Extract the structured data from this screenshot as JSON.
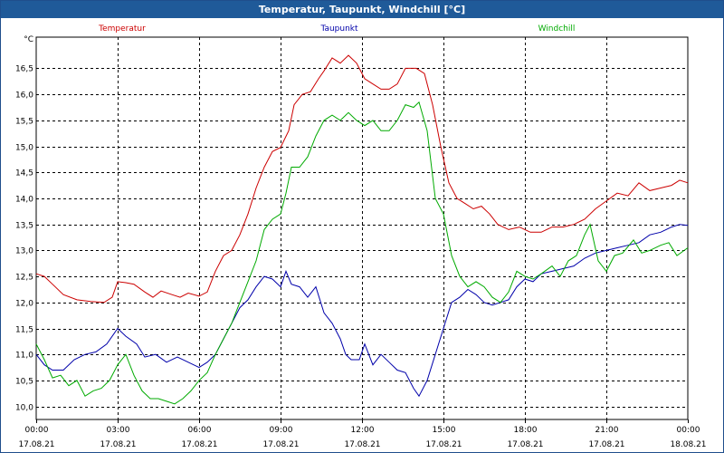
{
  "window": {
    "title": "Temperatur, Taupunkt, Windchill [°C]"
  },
  "chart_data": {
    "type": "line",
    "title": "Temperatur, Taupunkt, Windchill [°C]",
    "ylabel": "°C",
    "ylim": [
      9.75,
      17.1
    ],
    "xlim": [
      0,
      24
    ],
    "grid": true,
    "legend": "top",
    "yticks": [
      "10,0",
      "10,5",
      "11,0",
      "11,5",
      "12,0",
      "12,5",
      "13,0",
      "13,5",
      "14,0",
      "14,5",
      "15,0",
      "15,5",
      "16,0",
      "16,5"
    ],
    "ytick_values": [
      10.0,
      10.5,
      11.0,
      11.5,
      12.0,
      12.5,
      13.0,
      13.5,
      14.0,
      14.5,
      15.0,
      15.5,
      16.0,
      16.5
    ],
    "xticks": [
      {
        "time": "00:00",
        "date": "17.08.21",
        "h": 0
      },
      {
        "time": "03:00",
        "date": "17.08.21",
        "h": 3
      },
      {
        "time": "06:00",
        "date": "17.08.21",
        "h": 6
      },
      {
        "time": "09:00",
        "date": "17.08.21",
        "h": 9
      },
      {
        "time": "12:00",
        "date": "17.08.21",
        "h": 12
      },
      {
        "time": "15:00",
        "date": "17.08.21",
        "h": 15
      },
      {
        "time": "18:00",
        "date": "17.08.21",
        "h": 18
      },
      {
        "time": "21:00",
        "date": "17.08.21",
        "h": 21
      },
      {
        "time": "00:00",
        "date": "18.08.21",
        "h": 24
      }
    ],
    "series": [
      {
        "name": "Temperatur",
        "color": "#cc0000",
        "points": [
          [
            0,
            12.55
          ],
          [
            0.3,
            12.5
          ],
          [
            0.6,
            12.35
          ],
          [
            1.0,
            12.15
          ],
          [
            1.5,
            12.05
          ],
          [
            2.0,
            12.02
          ],
          [
            2.5,
            12.0
          ],
          [
            2.8,
            12.1
          ],
          [
            3.0,
            12.4
          ],
          [
            3.3,
            12.38
          ],
          [
            3.6,
            12.35
          ],
          [
            4.0,
            12.2
          ],
          [
            4.3,
            12.1
          ],
          [
            4.6,
            12.22
          ],
          [
            5.0,
            12.15
          ],
          [
            5.3,
            12.1
          ],
          [
            5.6,
            12.18
          ],
          [
            6.0,
            12.12
          ],
          [
            6.3,
            12.2
          ],
          [
            6.6,
            12.6
          ],
          [
            6.9,
            12.9
          ],
          [
            7.2,
            13.0
          ],
          [
            7.5,
            13.3
          ],
          [
            7.8,
            13.7
          ],
          [
            8.1,
            14.2
          ],
          [
            8.4,
            14.6
          ],
          [
            8.7,
            14.9
          ],
          [
            9.0,
            14.98
          ],
          [
            9.3,
            15.3
          ],
          [
            9.5,
            15.8
          ],
          [
            9.8,
            16.0
          ],
          [
            10.1,
            16.05
          ],
          [
            10.4,
            16.3
          ],
          [
            10.6,
            16.45
          ],
          [
            10.9,
            16.7
          ],
          [
            11.2,
            16.6
          ],
          [
            11.5,
            16.75
          ],
          [
            11.8,
            16.6
          ],
          [
            12.1,
            16.3
          ],
          [
            12.4,
            16.2
          ],
          [
            12.7,
            16.1
          ],
          [
            13.0,
            16.1
          ],
          [
            13.3,
            16.2
          ],
          [
            13.6,
            16.5
          ],
          [
            14.0,
            16.5
          ],
          [
            14.3,
            16.4
          ],
          [
            14.6,
            15.8
          ],
          [
            14.9,
            15.0
          ],
          [
            15.2,
            14.3
          ],
          [
            15.5,
            14.0
          ],
          [
            15.8,
            13.9
          ],
          [
            16.1,
            13.8
          ],
          [
            16.4,
            13.85
          ],
          [
            16.7,
            13.7
          ],
          [
            17.0,
            13.5
          ],
          [
            17.4,
            13.4
          ],
          [
            17.8,
            13.45
          ],
          [
            18.2,
            13.35
          ],
          [
            18.6,
            13.35
          ],
          [
            19.0,
            13.45
          ],
          [
            19.4,
            13.45
          ],
          [
            19.8,
            13.5
          ],
          [
            20.2,
            13.6
          ],
          [
            20.6,
            13.8
          ],
          [
            21.0,
            13.95
          ],
          [
            21.4,
            14.1
          ],
          [
            21.8,
            14.05
          ],
          [
            22.2,
            14.3
          ],
          [
            22.6,
            14.15
          ],
          [
            23.0,
            14.2
          ],
          [
            23.4,
            14.25
          ],
          [
            23.7,
            14.35
          ],
          [
            24.0,
            14.3
          ]
        ]
      },
      {
        "name": "Taupunkt",
        "color": "#0000aa",
        "points": [
          [
            0,
            11.0
          ],
          [
            0.3,
            10.8
          ],
          [
            0.6,
            10.7
          ],
          [
            1.0,
            10.7
          ],
          [
            1.4,
            10.9
          ],
          [
            1.8,
            11.0
          ],
          [
            2.2,
            11.05
          ],
          [
            2.6,
            11.2
          ],
          [
            3.0,
            11.5
          ],
          [
            3.3,
            11.35
          ],
          [
            3.7,
            11.2
          ],
          [
            4.0,
            10.95
          ],
          [
            4.4,
            11.0
          ],
          [
            4.8,
            10.85
          ],
          [
            5.2,
            10.95
          ],
          [
            5.6,
            10.85
          ],
          [
            6.0,
            10.75
          ],
          [
            6.3,
            10.85
          ],
          [
            6.6,
            11.0
          ],
          [
            6.9,
            11.3
          ],
          [
            7.2,
            11.6
          ],
          [
            7.5,
            11.9
          ],
          [
            7.8,
            12.05
          ],
          [
            8.1,
            12.3
          ],
          [
            8.4,
            12.5
          ],
          [
            8.7,
            12.45
          ],
          [
            9.0,
            12.3
          ],
          [
            9.2,
            12.6
          ],
          [
            9.4,
            12.35
          ],
          [
            9.7,
            12.3
          ],
          [
            10.0,
            12.1
          ],
          [
            10.3,
            12.3
          ],
          [
            10.6,
            11.8
          ],
          [
            10.9,
            11.6
          ],
          [
            11.2,
            11.3
          ],
          [
            11.4,
            11.0
          ],
          [
            11.6,
            10.9
          ],
          [
            11.9,
            10.9
          ],
          [
            12.1,
            11.2
          ],
          [
            12.4,
            10.8
          ],
          [
            12.7,
            11.0
          ],
          [
            13.0,
            10.85
          ],
          [
            13.3,
            10.7
          ],
          [
            13.6,
            10.65
          ],
          [
            13.9,
            10.35
          ],
          [
            14.1,
            10.2
          ],
          [
            14.4,
            10.5
          ],
          [
            14.7,
            11.0
          ],
          [
            15.0,
            11.5
          ],
          [
            15.3,
            12.0
          ],
          [
            15.6,
            12.1
          ],
          [
            15.9,
            12.25
          ],
          [
            16.2,
            12.15
          ],
          [
            16.5,
            12.0
          ],
          [
            16.8,
            11.95
          ],
          [
            17.1,
            12.0
          ],
          [
            17.4,
            12.05
          ],
          [
            17.7,
            12.3
          ],
          [
            18.0,
            12.45
          ],
          [
            18.3,
            12.4
          ],
          [
            18.6,
            12.55
          ],
          [
            19.0,
            12.6
          ],
          [
            19.4,
            12.65
          ],
          [
            19.8,
            12.7
          ],
          [
            20.2,
            12.85
          ],
          [
            20.6,
            12.95
          ],
          [
            21.0,
            13.0
          ],
          [
            21.4,
            13.05
          ],
          [
            21.8,
            13.1
          ],
          [
            22.2,
            13.15
          ],
          [
            22.6,
            13.3
          ],
          [
            23.0,
            13.35
          ],
          [
            23.4,
            13.45
          ],
          [
            23.7,
            13.5
          ],
          [
            24.0,
            13.48
          ]
        ]
      },
      {
        "name": "Windchill",
        "color": "#00aa00",
        "points": [
          [
            0,
            11.2
          ],
          [
            0.3,
            10.9
          ],
          [
            0.6,
            10.55
          ],
          [
            0.9,
            10.6
          ],
          [
            1.2,
            10.4
          ],
          [
            1.5,
            10.5
          ],
          [
            1.8,
            10.2
          ],
          [
            2.1,
            10.3
          ],
          [
            2.4,
            10.35
          ],
          [
            2.7,
            10.5
          ],
          [
            3.0,
            10.8
          ],
          [
            3.3,
            11.0
          ],
          [
            3.6,
            10.6
          ],
          [
            3.9,
            10.3
          ],
          [
            4.2,
            10.15
          ],
          [
            4.5,
            10.15
          ],
          [
            4.8,
            10.1
          ],
          [
            5.1,
            10.05
          ],
          [
            5.4,
            10.15
          ],
          [
            5.7,
            10.3
          ],
          [
            6.0,
            10.5
          ],
          [
            6.3,
            10.65
          ],
          [
            6.6,
            11.0
          ],
          [
            6.9,
            11.3
          ],
          [
            7.2,
            11.6
          ],
          [
            7.5,
            12.0
          ],
          [
            7.8,
            12.4
          ],
          [
            8.1,
            12.8
          ],
          [
            8.4,
            13.4
          ],
          [
            8.7,
            13.6
          ],
          [
            9.0,
            13.7
          ],
          [
            9.2,
            14.1
          ],
          [
            9.4,
            14.6
          ],
          [
            9.7,
            14.6
          ],
          [
            10.0,
            14.8
          ],
          [
            10.3,
            15.2
          ],
          [
            10.6,
            15.5
          ],
          [
            10.9,
            15.6
          ],
          [
            11.2,
            15.5
          ],
          [
            11.5,
            15.65
          ],
          [
            11.8,
            15.5
          ],
          [
            12.1,
            15.4
          ],
          [
            12.4,
            15.5
          ],
          [
            12.7,
            15.3
          ],
          [
            13.0,
            15.3
          ],
          [
            13.3,
            15.5
          ],
          [
            13.6,
            15.8
          ],
          [
            13.9,
            15.75
          ],
          [
            14.1,
            15.85
          ],
          [
            14.4,
            15.3
          ],
          [
            14.7,
            14.0
          ],
          [
            15.0,
            13.7
          ],
          [
            15.3,
            12.9
          ],
          [
            15.6,
            12.5
          ],
          [
            15.9,
            12.3
          ],
          [
            16.2,
            12.4
          ],
          [
            16.5,
            12.3
          ],
          [
            16.8,
            12.1
          ],
          [
            17.1,
            12.0
          ],
          [
            17.4,
            12.2
          ],
          [
            17.7,
            12.6
          ],
          [
            18.0,
            12.5
          ],
          [
            18.3,
            12.45
          ],
          [
            18.6,
            12.55
          ],
          [
            19.0,
            12.7
          ],
          [
            19.3,
            12.5
          ],
          [
            19.6,
            12.8
          ],
          [
            19.9,
            12.9
          ],
          [
            20.2,
            13.3
          ],
          [
            20.4,
            13.5
          ],
          [
            20.7,
            12.8
          ],
          [
            21.0,
            12.6
          ],
          [
            21.3,
            12.9
          ],
          [
            21.6,
            12.95
          ],
          [
            22.0,
            13.2
          ],
          [
            22.3,
            12.95
          ],
          [
            22.6,
            13.0
          ],
          [
            23.0,
            13.1
          ],
          [
            23.3,
            13.15
          ],
          [
            23.6,
            12.9
          ],
          [
            24.0,
            13.05
          ]
        ]
      }
    ]
  }
}
